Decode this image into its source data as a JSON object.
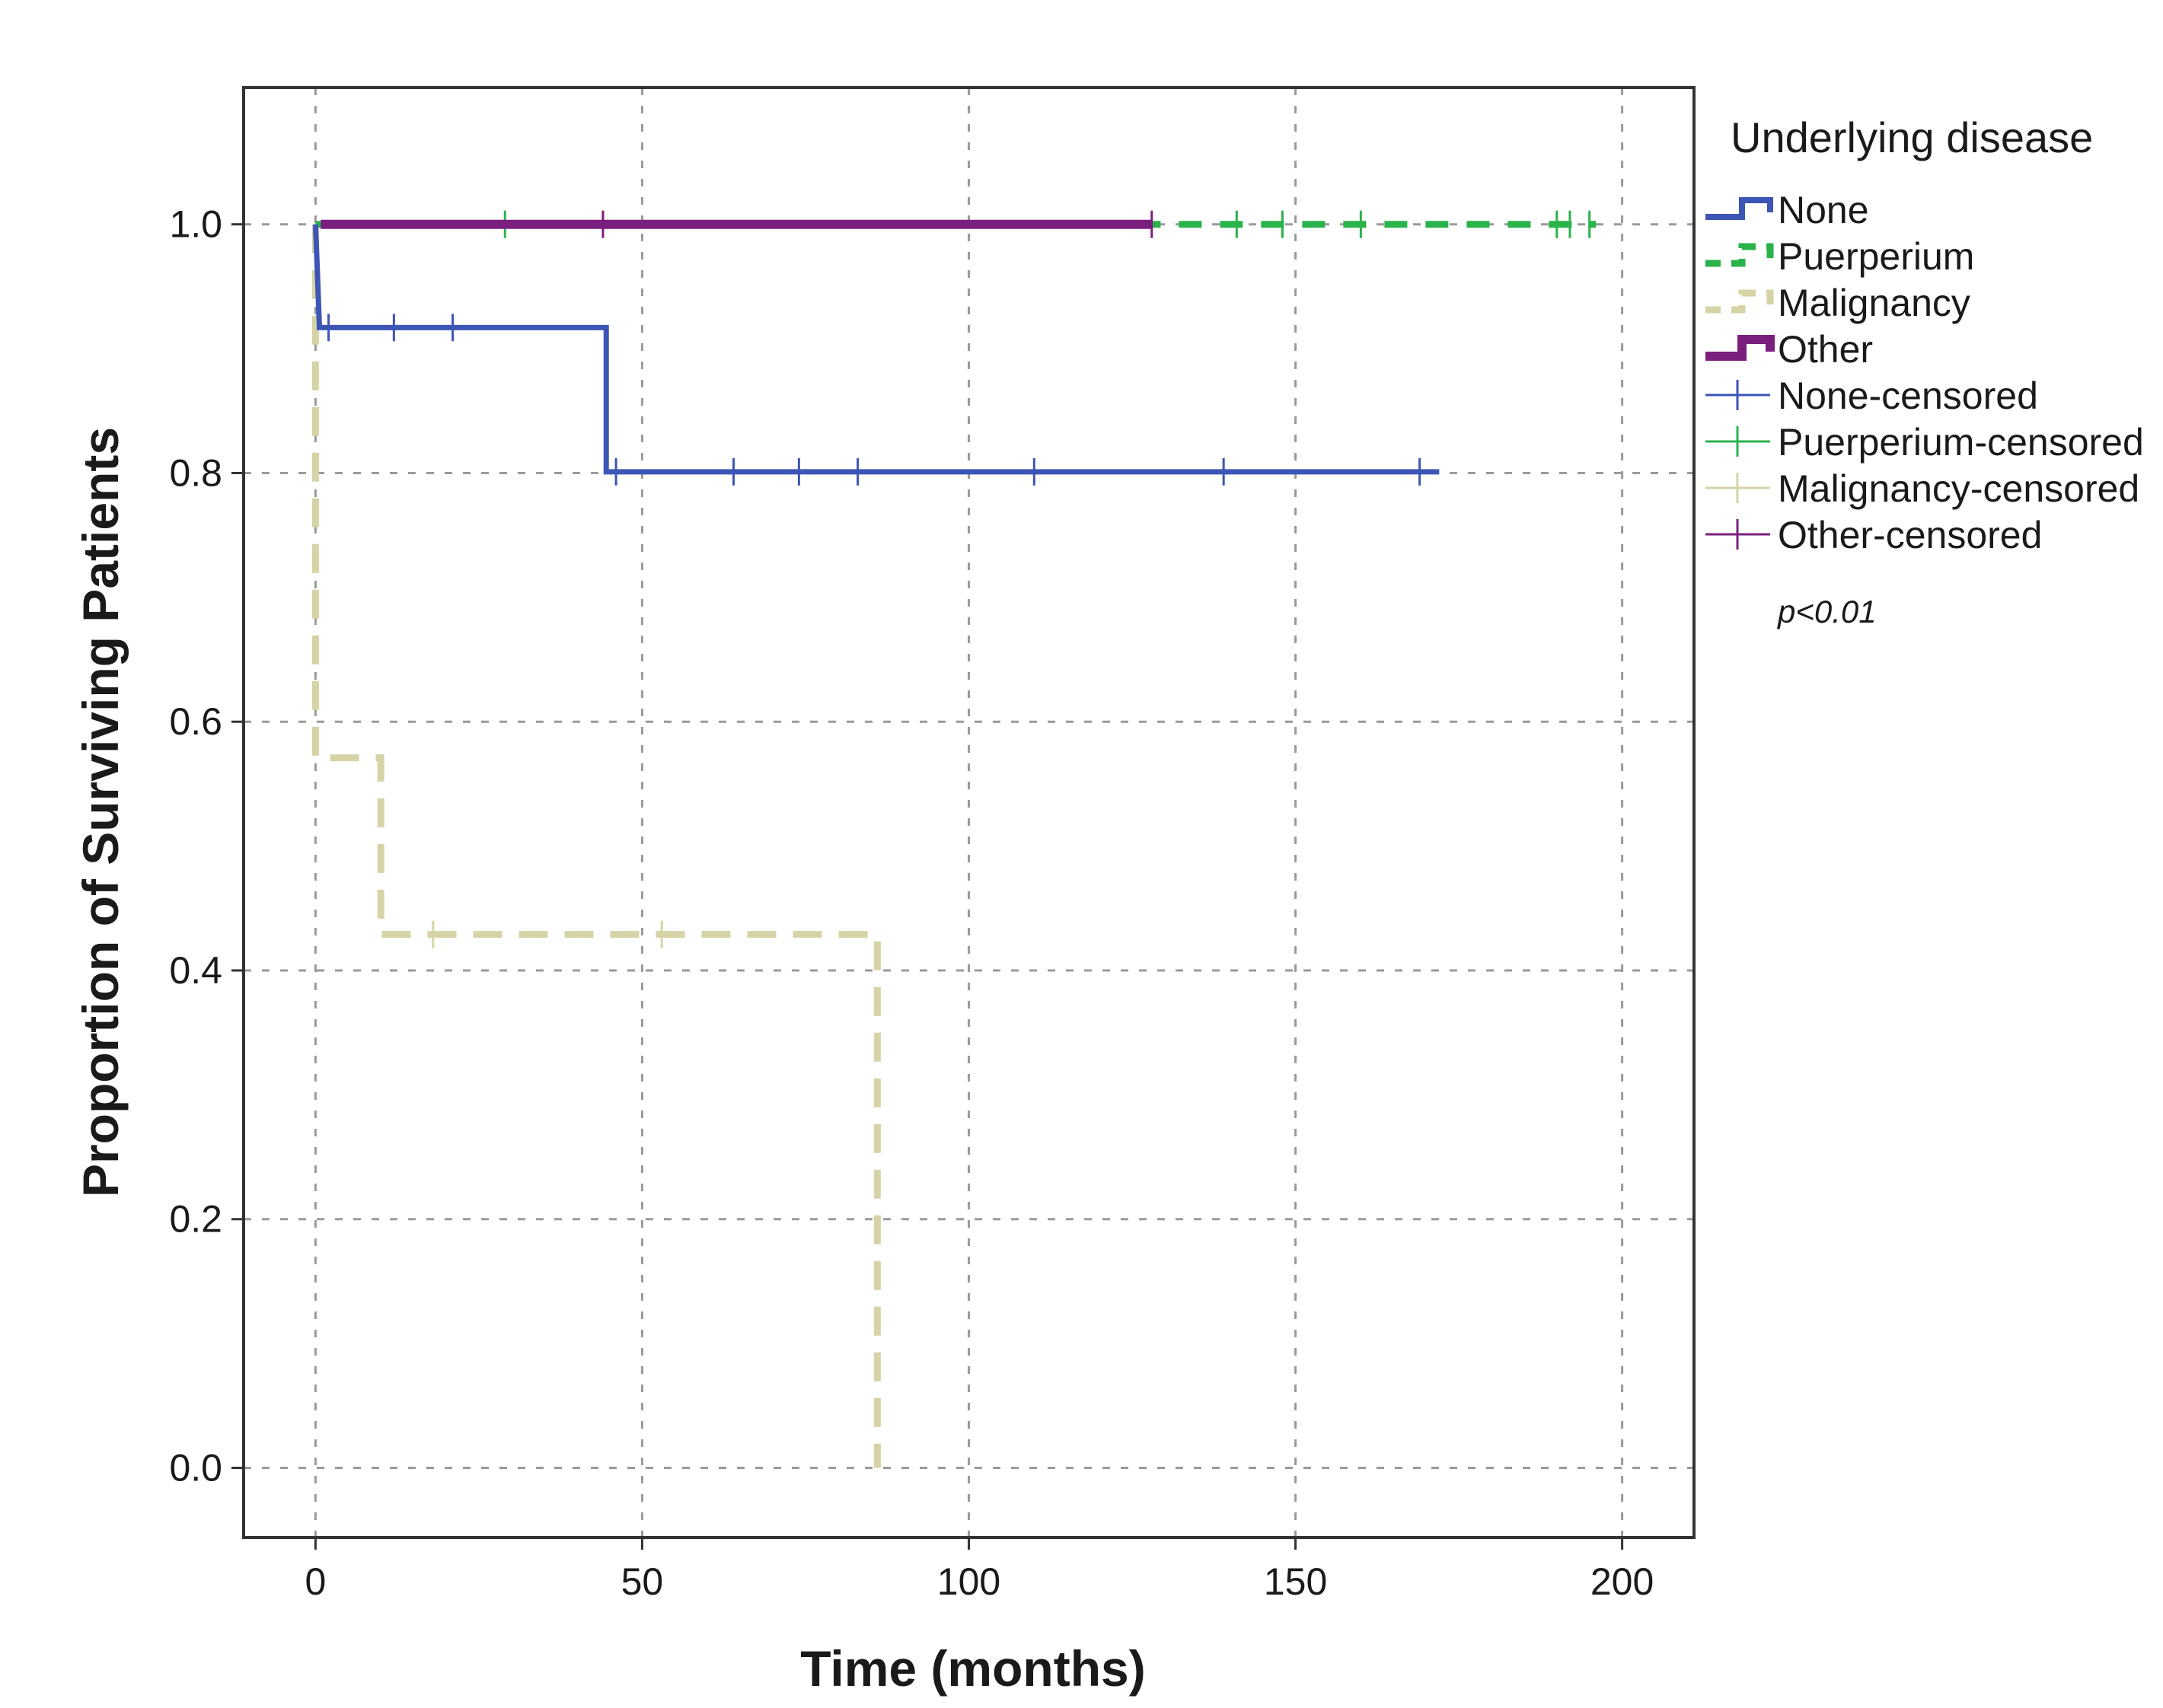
{
  "chart_data": {
    "type": "line",
    "step": true,
    "xlabel": "Time (months)",
    "ylabel": "Proportion of Surviving Patients",
    "xlim": [
      -11,
      211
    ],
    "ylim": [
      -0.056,
      1.11
    ],
    "xticks": [
      0,
      50,
      100,
      150,
      200
    ],
    "yticks": [
      0.0,
      0.2,
      0.4,
      0.6,
      0.8,
      1.0
    ],
    "xtick_labels": [
      "0",
      "50",
      "100",
      "150",
      "200"
    ],
    "ytick_labels": [
      "0.0",
      "0.2",
      "0.4",
      "0.6",
      "0.8",
      "1.0"
    ],
    "grid": true,
    "legend": {
      "title": "Underlying disease",
      "placement": "right",
      "p_value": "p<0.01"
    },
    "series": [
      {
        "name": "None",
        "censored_name": "None-censored",
        "color": "#3d55b5",
        "dash": "solid",
        "steps": [
          [
            0,
            1.0
          ],
          [
            0.3,
            0.96
          ],
          [
            0.6,
            0.917
          ],
          [
            44.5,
            0.917
          ],
          [
            44.5,
            0.801
          ],
          [
            172,
            0.801
          ]
        ],
        "censored": [
          2,
          12,
          21,
          46,
          64,
          74,
          83,
          110,
          139,
          169
        ]
      },
      {
        "name": "Puerperium",
        "censored_name": "Puerperium-censored",
        "color": "#2ab34a",
        "dash": "dashed",
        "steps": [
          [
            0,
            1.0
          ],
          [
            196,
            1.0
          ]
        ],
        "censored": [
          29,
          141,
          148,
          160,
          190,
          192,
          195
        ]
      },
      {
        "name": "Malignancy",
        "censored_name": "Malignancy-censored",
        "color": "#d6d3a6",
        "dash": "dashed",
        "steps": [
          [
            0,
            1.0
          ],
          [
            0,
            0.571
          ],
          [
            10,
            0.571
          ],
          [
            10,
            0.429
          ],
          [
            86,
            0.429
          ],
          [
            86,
            0.0
          ]
        ],
        "censored": [
          18,
          53
        ]
      },
      {
        "name": "Other",
        "censored_name": "Other-censored",
        "color": "#7b1f7e",
        "dash": "solid",
        "steps": [
          [
            0.8,
            1.0
          ],
          [
            128,
            1.0
          ]
        ],
        "censored": [
          44,
          128
        ]
      }
    ]
  }
}
